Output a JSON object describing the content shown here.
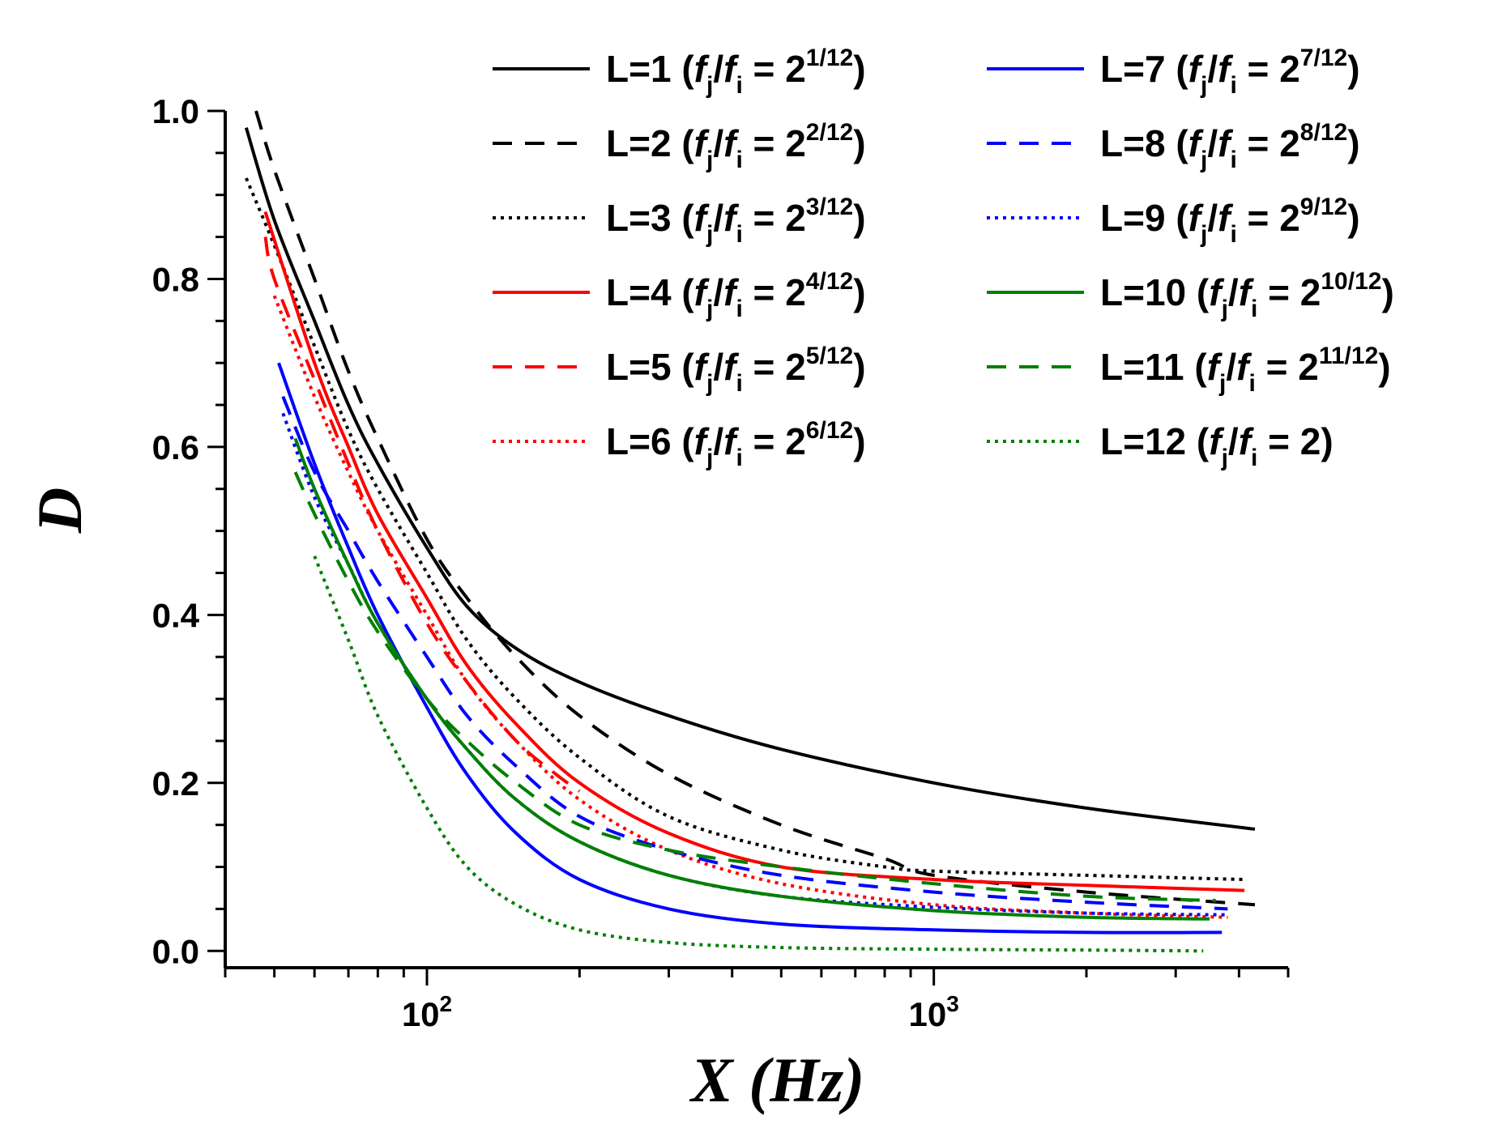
{
  "chart_data": {
    "type": "line",
    "title": "",
    "xlabel": "X (Hz)",
    "ylabel": "D",
    "xscale": "log",
    "xlim": [
      40,
      5000
    ],
    "ylim": [
      -0.02,
      1.0
    ],
    "xticks": [
      {
        "value": 100,
        "label": "10",
        "exp": "2"
      },
      {
        "value": 1000,
        "label": "10",
        "exp": "3"
      }
    ],
    "yticks": [
      {
        "value": 0.0,
        "label": "0.0"
      },
      {
        "value": 0.2,
        "label": "0.2"
      },
      {
        "value": 0.4,
        "label": "0.4"
      },
      {
        "value": 0.6,
        "label": "0.6"
      },
      {
        "value": 0.8,
        "label": "0.8"
      },
      {
        "value": 1.0,
        "label": "1.0"
      }
    ],
    "legend_position": "top-right",
    "series": [
      {
        "name": "L=1",
        "ratio": "1/12",
        "color": "#000000",
        "dash": "solid",
        "x": [
          44,
          50,
          60,
          70,
          80,
          100,
          120,
          150,
          200,
          300,
          500,
          1000,
          2000,
          4300
        ],
        "y": [
          0.98,
          0.87,
          0.75,
          0.65,
          0.58,
          0.48,
          0.41,
          0.36,
          0.32,
          0.28,
          0.24,
          0.2,
          0.17,
          0.145
        ]
      },
      {
        "name": "L=2",
        "ratio": "2/12",
        "color": "#000000",
        "dash": "dashed",
        "x": [
          46,
          50,
          60,
          70,
          80,
          100,
          120,
          150,
          200,
          300,
          500,
          800,
          1000,
          2000,
          4300
        ],
        "y": [
          1.0,
          0.93,
          0.8,
          0.69,
          0.61,
          0.49,
          0.42,
          0.35,
          0.28,
          0.21,
          0.15,
          0.11,
          0.09,
          0.07,
          0.055
        ]
      },
      {
        "name": "L=3",
        "ratio": "3/12",
        "color": "#000000",
        "dash": "dotted",
        "x": [
          44,
          50,
          60,
          70,
          80,
          100,
          120,
          150,
          200,
          300,
          500,
          800,
          1000,
          2000,
          4100
        ],
        "y": [
          0.92,
          0.84,
          0.72,
          0.62,
          0.55,
          0.45,
          0.37,
          0.3,
          0.23,
          0.16,
          0.12,
          0.1,
          0.095,
          0.09,
          0.085
        ]
      },
      {
        "name": "L=4",
        "ratio": "4/12",
        "color": "#ff0000",
        "dash": "solid",
        "x": [
          48,
          60,
          70,
          80,
          100,
          120,
          150,
          200,
          300,
          500,
          1000,
          2000,
          4100
        ],
        "y": [
          0.88,
          0.7,
          0.6,
          0.52,
          0.42,
          0.34,
          0.27,
          0.2,
          0.14,
          0.1,
          0.085,
          0.078,
          0.072
        ]
      },
      {
        "name": "L=5",
        "ratio": "5/12",
        "color": "#ff0000",
        "dash": "dashed",
        "x": [
          48,
          50,
          60,
          70,
          80,
          100,
          120,
          150,
          180,
          200
        ],
        "y": [
          0.85,
          0.8,
          0.68,
          0.58,
          0.5,
          0.39,
          0.32,
          0.25,
          0.21,
          0.19
        ]
      },
      {
        "name": "L=6",
        "ratio": "6/12",
        "color": "#ff0000",
        "dash": "dotted",
        "x": [
          50,
          60,
          70,
          80,
          100,
          120,
          150,
          200,
          300,
          500,
          1000,
          2000,
          3800
        ],
        "y": [
          0.78,
          0.66,
          0.57,
          0.5,
          0.4,
          0.32,
          0.25,
          0.18,
          0.12,
          0.08,
          0.055,
          0.045,
          0.04
        ]
      },
      {
        "name": "L=7",
        "ratio": "7/12",
        "color": "#0000ff",
        "dash": "solid",
        "x": [
          51,
          60,
          70,
          80,
          100,
          120,
          150,
          200,
          300,
          500,
          1000,
          2000,
          3700
        ],
        "y": [
          0.7,
          0.58,
          0.48,
          0.4,
          0.29,
          0.21,
          0.14,
          0.085,
          0.05,
          0.032,
          0.025,
          0.022,
          0.022
        ]
      },
      {
        "name": "L=8",
        "ratio": "8/12",
        "color": "#0000ff",
        "dash": "dashed",
        "x": [
          52,
          60,
          70,
          80,
          100,
          120,
          150,
          200,
          300,
          500,
          1000,
          2000,
          3800
        ],
        "y": [
          0.66,
          0.57,
          0.5,
          0.44,
          0.35,
          0.28,
          0.22,
          0.16,
          0.12,
          0.09,
          0.07,
          0.058,
          0.05
        ]
      },
      {
        "name": "L=9",
        "ratio": "9/12",
        "color": "#0000ff",
        "dash": "dotted",
        "x": [
          52,
          60,
          70,
          80,
          100,
          120,
          150,
          200,
          300,
          500,
          1000,
          2000,
          3800
        ],
        "y": [
          0.64,
          0.54,
          0.46,
          0.39,
          0.3,
          0.24,
          0.18,
          0.13,
          0.09,
          0.065,
          0.052,
          0.045,
          0.043
        ]
      },
      {
        "name": "L=10",
        "ratio": "10/12",
        "color": "#008000",
        "dash": "solid",
        "x": [
          55,
          60,
          70,
          80,
          100,
          120,
          150,
          200,
          300,
          500,
          1000,
          2000,
          3500
        ],
        "y": [
          0.61,
          0.55,
          0.46,
          0.39,
          0.3,
          0.24,
          0.18,
          0.13,
          0.09,
          0.065,
          0.048,
          0.04,
          0.038
        ]
      },
      {
        "name": "L=11",
        "ratio": "11/12",
        "color": "#008000",
        "dash": "dashed",
        "x": [
          55,
          60,
          70,
          80,
          100,
          120,
          150,
          200,
          300,
          500,
          1000,
          2000,
          3600
        ],
        "y": [
          0.57,
          0.52,
          0.44,
          0.38,
          0.3,
          0.25,
          0.2,
          0.15,
          0.12,
          0.1,
          0.08,
          0.065,
          0.06
        ]
      },
      {
        "name": "L=12",
        "ratio": "",
        "color": "#008000",
        "dash": "dotted",
        "x": [
          60,
          70,
          80,
          100,
          120,
          150,
          200,
          300,
          500,
          1000,
          2000,
          3400
        ],
        "y": [
          0.47,
          0.37,
          0.28,
          0.17,
          0.1,
          0.055,
          0.025,
          0.01,
          0.004,
          0.002,
          0.001,
          0.0
        ]
      }
    ]
  },
  "legend": [
    {
      "label": "L=1",
      "base": "2",
      "exp": "1/12",
      "color": "#000000",
      "dash": "solid"
    },
    {
      "label": "L=2",
      "base": "2",
      "exp": "2/12",
      "color": "#000000",
      "dash": "dashed"
    },
    {
      "label": "L=3",
      "base": "2",
      "exp": "3/12",
      "color": "#000000",
      "dash": "dotted"
    },
    {
      "label": "L=4",
      "base": "2",
      "exp": "4/12",
      "color": "#ff0000",
      "dash": "solid"
    },
    {
      "label": "L=5",
      "base": "2",
      "exp": "5/12",
      "color": "#ff0000",
      "dash": "dashed"
    },
    {
      "label": "L=6",
      "base": "2",
      "exp": "6/12",
      "color": "#ff0000",
      "dash": "dotted"
    },
    {
      "label": "L=7",
      "base": "2",
      "exp": "7/12",
      "color": "#0000ff",
      "dash": "solid"
    },
    {
      "label": "L=8",
      "base": "2",
      "exp": "8/12",
      "color": "#0000ff",
      "dash": "dashed"
    },
    {
      "label": "L=9",
      "base": "2",
      "exp": "9/12",
      "color": "#0000ff",
      "dash": "dotted"
    },
    {
      "label": "L=10",
      "base": "2",
      "exp": "10/12",
      "color": "#008000",
      "dash": "solid"
    },
    {
      "label": "L=11",
      "base": "2",
      "exp": "11/12",
      "color": "#008000",
      "dash": "dashed"
    },
    {
      "label": "L=12",
      "base": "2",
      "exp": "",
      "color": "#008000",
      "dash": "dotted"
    }
  ],
  "legend_ratio": {
    "f": "f",
    "j": "j",
    "i": "i",
    "slash": "/",
    "equals": "="
  }
}
